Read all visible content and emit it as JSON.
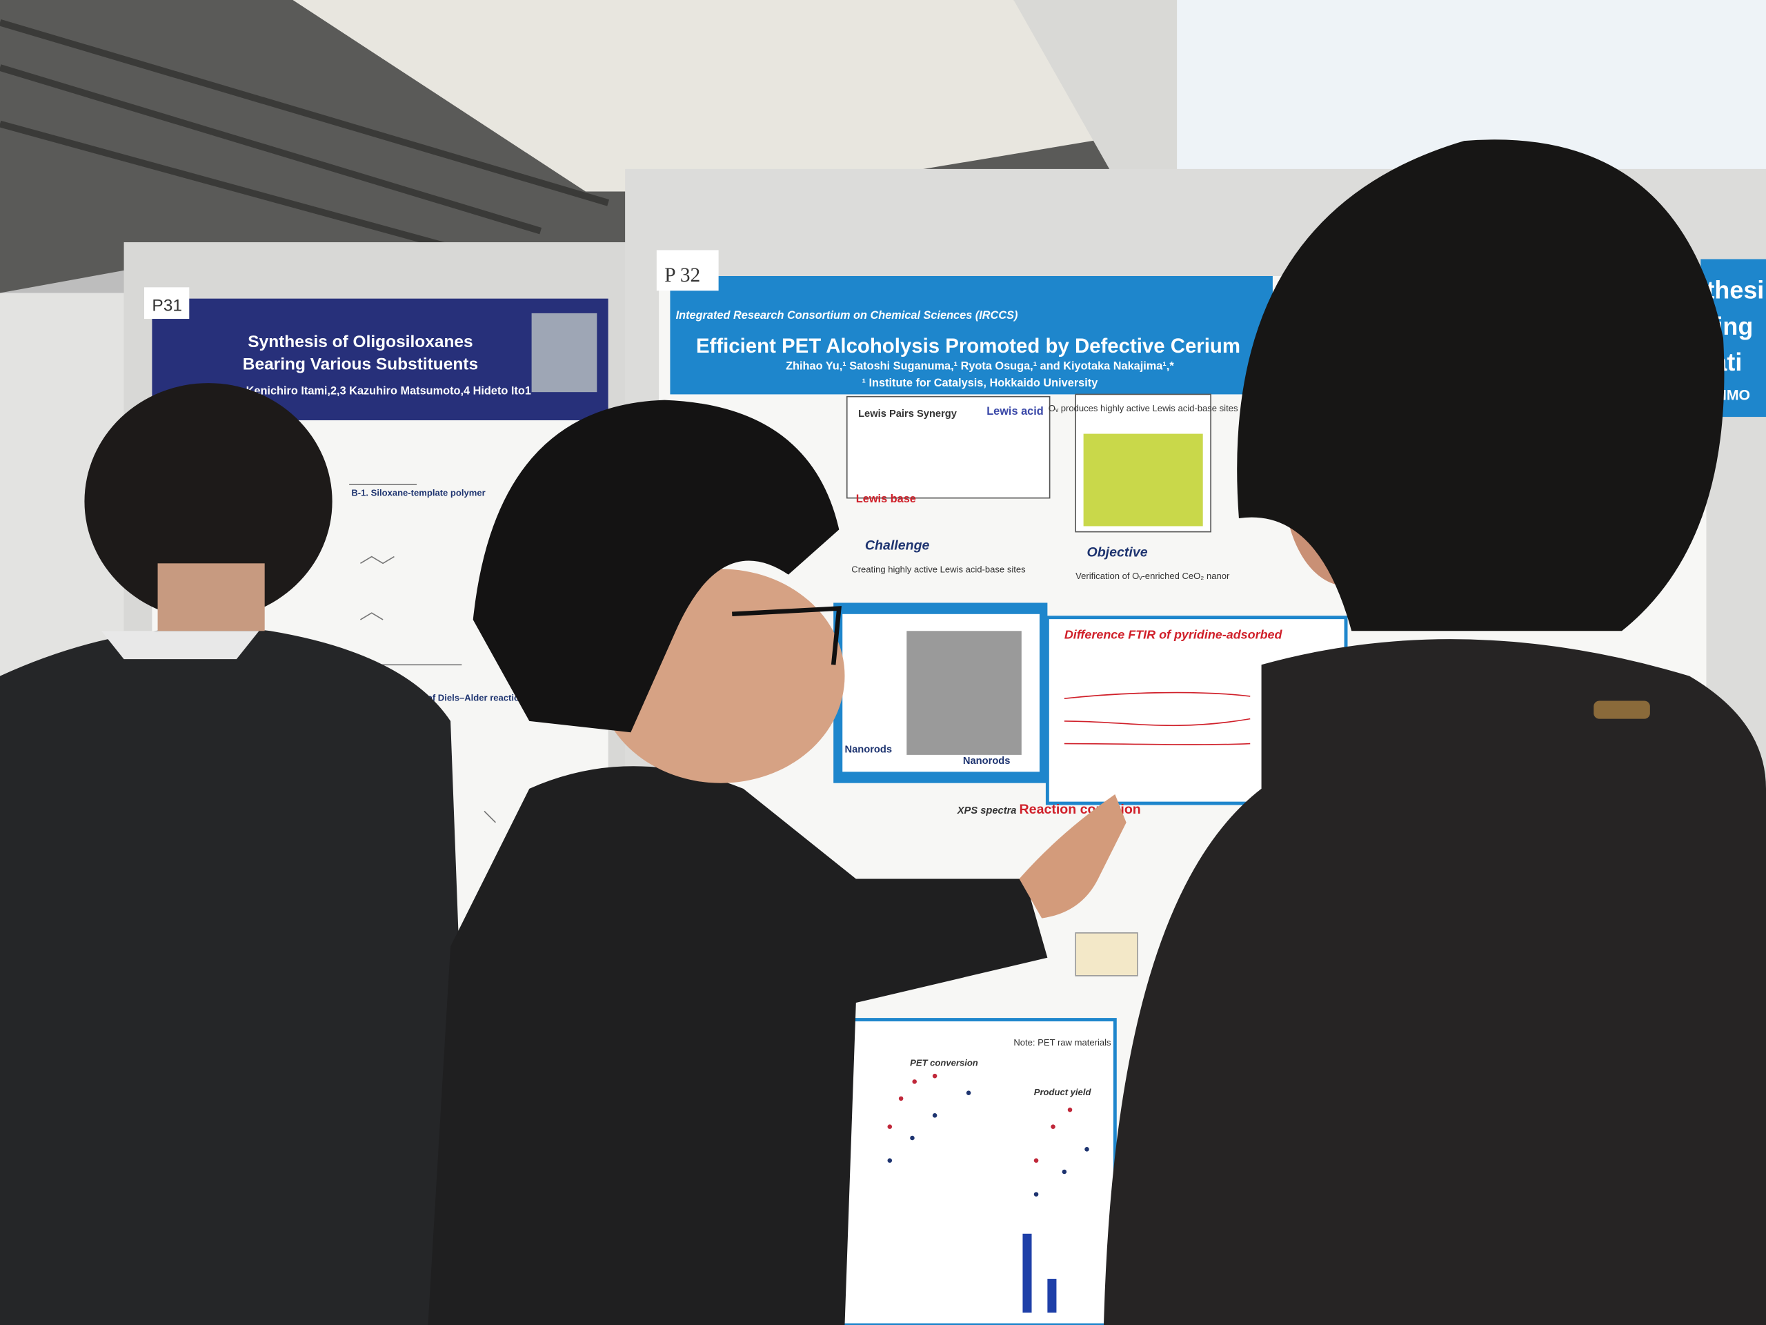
{
  "posters": [
    {
      "number": "P31",
      "title": [
        "Synthesis of Oligosiloxanes",
        "Bearing Various Substituents"
      ],
      "authors": "Kenichiro Itami,2,3 Kazuhiro Matsumoto,4 Hideto Ito1",
      "sections": [
        "B-1. Siloxane-template polymer",
        "B-2. Examination of Diels–Alder reaction"
      ]
    },
    {
      "number": "P 32",
      "consortium": "Integrated Research Consortium on Chemical Sciences (IRCCS)",
      "title": "Efficient PET Alcoholysis Promoted by Defective Cerium",
      "authors": "Zhihao Yu,¹ Satoshi Suganuma,¹ Ryota Osuga,¹ and Kiyotaka Nakajima¹,*",
      "affiliation": "¹ Institute for Catalysis, Hokkaido University",
      "panels": [
        "Lewis Pairs Synergy",
        "Lewis acid",
        "Lewis base",
        "Oᵥ produces highly active Lewis acid-base sites",
        "Challenge",
        "Creating highly active Lewis acid-base sites",
        "Objective",
        "Verification of Oᵥ-enriched CeO₂ nanor",
        "Nanorods",
        "Difference FTIR of pyridine-adsorbed",
        "XPS spectra",
        "Reaction condition",
        "PET conversion",
        "Product yield",
        "Note: PET raw materials"
      ]
    },
    {
      "title": [
        "thesi",
        "ring",
        "lati"
      ],
      "authors": "HIMO"
    }
  ]
}
